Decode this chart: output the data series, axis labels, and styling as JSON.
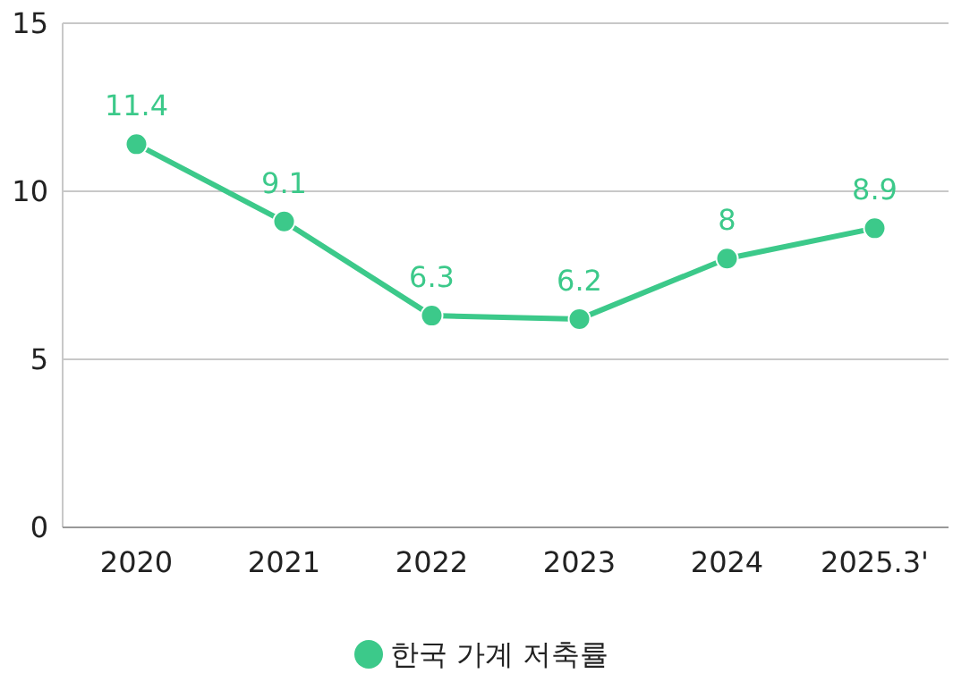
{
  "chart_data": {
    "type": "line",
    "categories": [
      "2020",
      "2021",
      "2022",
      "2023",
      "2024",
      "2025.3'"
    ],
    "series": [
      {
        "name": "한국 가계 저축률",
        "color": "#3cc98a",
        "values": [
          11.4,
          9.1,
          6.3,
          6.2,
          8,
          8.9
        ]
      }
    ],
    "ylim": [
      0,
      15
    ],
    "yticks": [
      0,
      5,
      10,
      15
    ],
    "grid": "y",
    "legend": "bottom",
    "marker": "circle",
    "data_labels": true
  }
}
